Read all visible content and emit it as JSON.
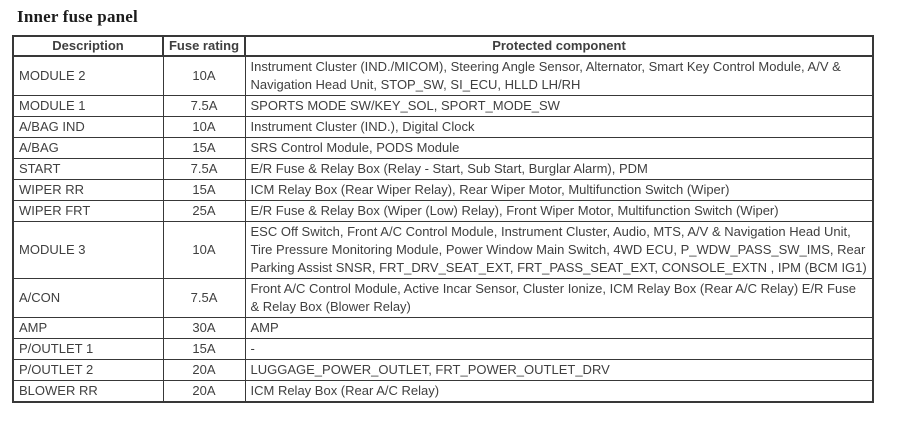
{
  "title": "Inner fuse panel",
  "colors": {
    "text": "#3f3f3f",
    "border": "#383838",
    "background": "#ffffff"
  },
  "table": {
    "headers": [
      "Description",
      "Fuse rating",
      "Protected component"
    ],
    "rows": [
      {
        "description": "MODULE 2",
        "rating": "10A",
        "component": "Instrument Cluster (IND./MICOM), Steering Angle Sensor, Alternator, Smart Key Control Module, A/V & Navigation Head Unit, STOP_SW, SI_ECU, HLLD LH/RH"
      },
      {
        "description": "MODULE 1",
        "rating": "7.5A",
        "component": "SPORTS MODE SW/KEY_SOL, SPORT_MODE_SW"
      },
      {
        "description": "A/BAG IND",
        "rating": "10A",
        "component": "Instrument Cluster (IND.), Digital Clock"
      },
      {
        "description": "A/BAG",
        "rating": "15A",
        "component": "SRS Control Module, PODS Module"
      },
      {
        "description": "START",
        "rating": "7.5A",
        "component": "E/R Fuse & Relay Box (Relay - Start, Sub Start, Burglar Alarm), PDM"
      },
      {
        "description": "WIPER RR",
        "rating": "15A",
        "component": "ICM Relay Box (Rear Wiper Relay), Rear Wiper Motor, Multifunction Switch (Wiper)"
      },
      {
        "description": "WIPER FRT",
        "rating": "25A",
        "component": "E/R Fuse & Relay Box (Wiper (Low) Relay), Front Wiper Motor, Multifunction Switch (Wiper)"
      },
      {
        "description": "MODULE 3",
        "rating": "10A",
        "component": "ESC Off Switch, Front A/C Control Module, Instrument Cluster, Audio, MTS, A/V & Navigation Head Unit, Tire Pressure Monitoring Module, Power Window Main Switch,  4WD ECU, P_WDW_PASS_SW_IMS, Rear Parking Assist SNSR, FRT_DRV_SEAT_EXT, FRT_PASS_SEAT_EXT, CONSOLE_EXTN , IPM (BCM IG1)"
      },
      {
        "description": "A/CON",
        "rating": "7.5A",
        "component": "Front A/C Control Module, Active Incar Sensor, Cluster Ionize, ICM Relay Box (Rear A/C Relay) E/R Fuse & Relay Box (Blower Relay)"
      },
      {
        "description": "AMP",
        "rating": "30A",
        "component": "AMP"
      },
      {
        "description": "P/OUTLET 1",
        "rating": "15A",
        "component": "-"
      },
      {
        "description": "P/OUTLET 2",
        "rating": "20A",
        "component": "LUGGAGE_POWER_OUTLET, FRT_POWER_OUTLET_DRV"
      },
      {
        "description": "BLOWER RR",
        "rating": "20A",
        "component": "ICM Relay Box (Rear A/C Relay)"
      }
    ]
  }
}
